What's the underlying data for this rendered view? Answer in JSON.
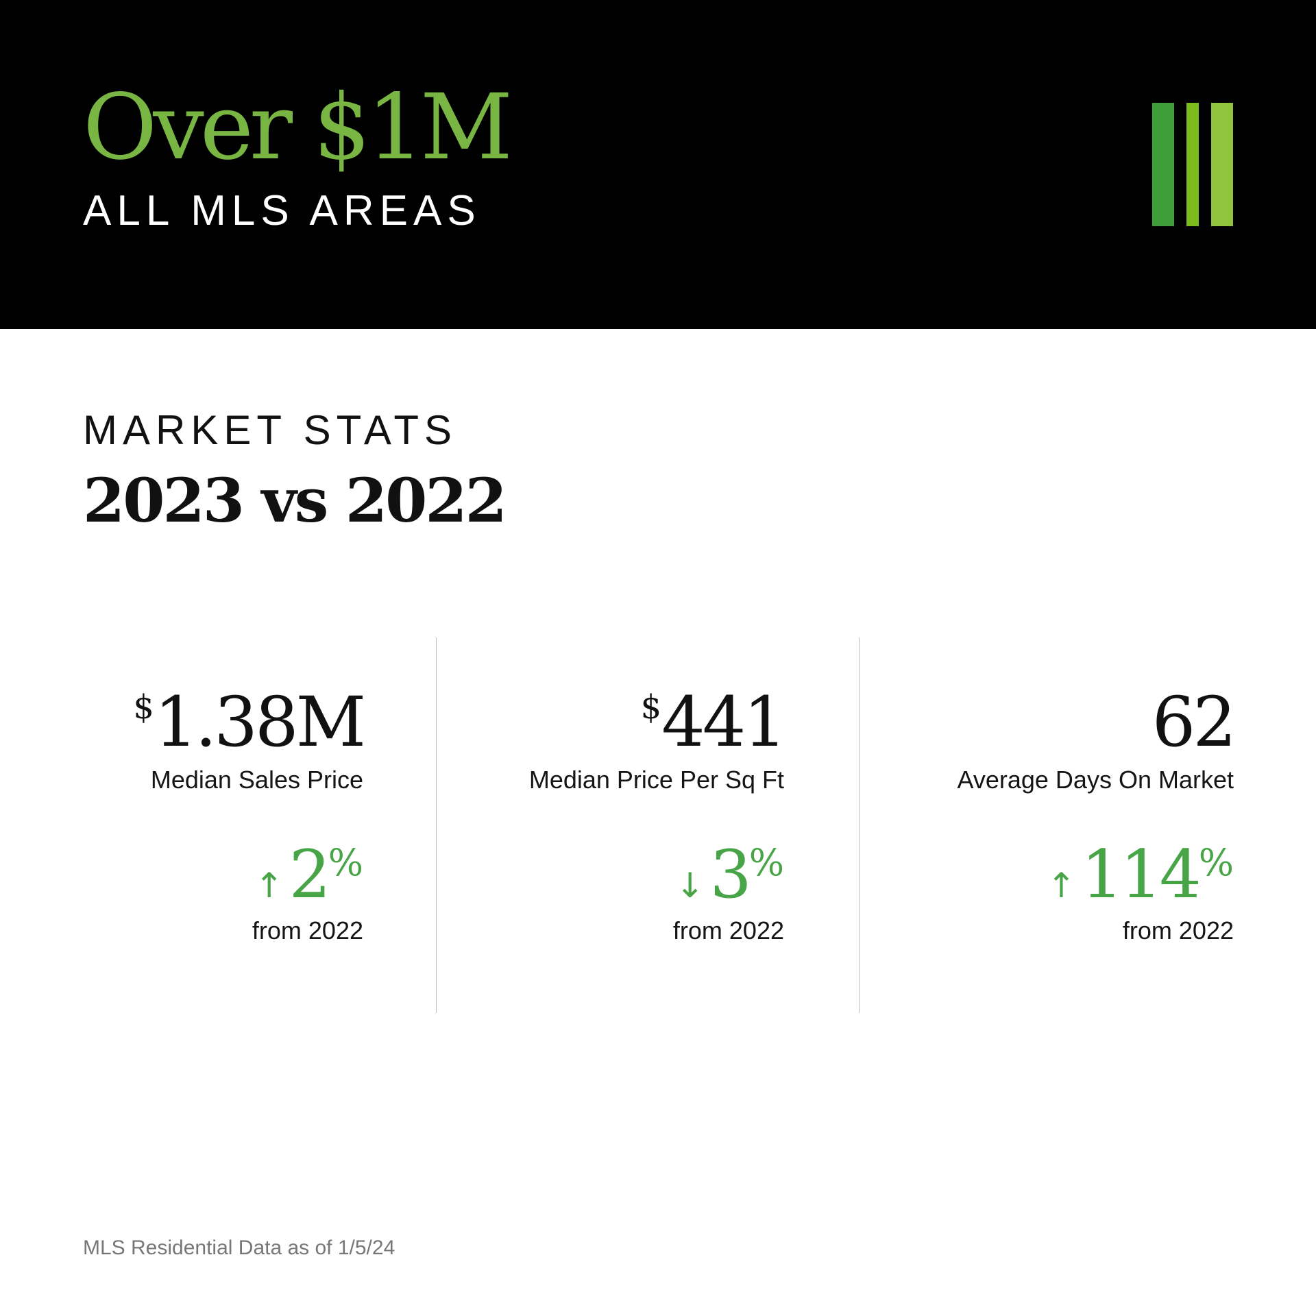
{
  "header": {
    "title": "Over $1M",
    "subtitle": "ALL MLS AREAS",
    "logo": {
      "icon": "three-vertical-bars-icon",
      "colors": [
        "#3f9d3a",
        "#7bbb1c",
        "#8fc43c"
      ]
    }
  },
  "section": {
    "label": "MARKET STATS",
    "title": "2023 vs 2022"
  },
  "stats": [
    {
      "value_prefix": "$",
      "value": "1.38M",
      "label": "Median Sales Price",
      "change_arrow": "↑",
      "change_direction": "up",
      "change_value": "2",
      "change_unit": "%",
      "from": "from 2022"
    },
    {
      "value_prefix": "$",
      "value": "441",
      "label": "Median Price Per Sq Ft",
      "change_arrow": "↓",
      "change_direction": "down",
      "change_value": "3",
      "change_unit": "%",
      "from": "from 2022"
    },
    {
      "value_prefix": "",
      "value": "62",
      "label": "Average Days On Market",
      "change_arrow": "↑",
      "change_direction": "up",
      "change_value": "114",
      "change_unit": "%",
      "from": "from 2022"
    }
  ],
  "footer": {
    "note": "MLS Residential Data as of 1/5/24"
  },
  "colors": {
    "header_background": "#000000",
    "title_accent": "#78b543",
    "change_green": "#47a447",
    "divider": "#b9c1c5",
    "footer_text": "#777777"
  }
}
